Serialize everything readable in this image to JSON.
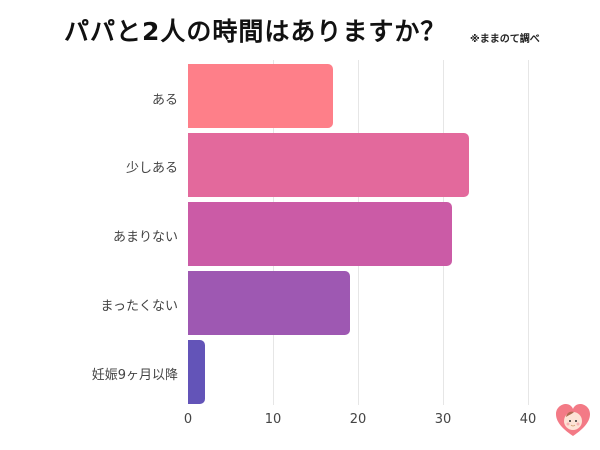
{
  "header": {
    "title": "パパと2人の時間はありますか？",
    "note": "※ままのて調べ"
  },
  "chart_data": {
    "type": "bar",
    "orientation": "horizontal",
    "title": "パパと2人の時間はありますか？",
    "subtitle": "※ままのて調べ",
    "categories": [
      "ある",
      "少しある",
      "あまりない",
      "まったくない",
      "妊娠9ヶ月以降"
    ],
    "values": [
      17,
      33,
      31,
      19,
      2
    ],
    "colors": [
      "#fe7f89",
      "#e3699c",
      "#cb5ba6",
      "#9e58b2",
      "#6354b8"
    ],
    "xlabel": "",
    "ylabel": "",
    "xlim": [
      0,
      40
    ],
    "xticks": [
      "0",
      "10",
      "20",
      "30",
      "40"
    ],
    "grid": true,
    "legend": "none"
  },
  "logo": {
    "icon": "heart-baby-logo-icon"
  }
}
